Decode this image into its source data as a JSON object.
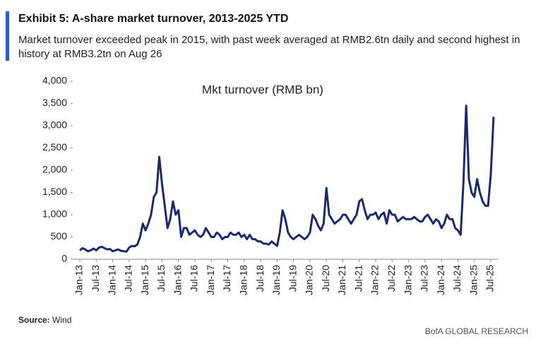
{
  "chart_data": {
    "type": "line",
    "title": "Exhibit 5: A-share market turnover, 2013-2025 YTD",
    "subtitle": "Market turnover exceeded peak in 2015, with past week averaged at RMB2.6tn daily and second highest in history at RMB3.2tn on Aug 26",
    "source_label": "Source:",
    "source": "Wind",
    "brand": "BofA GLOBAL RESEARCH",
    "categories": [
      "Jan-13",
      null,
      null,
      null,
      null,
      null,
      "Jul-13",
      null,
      null,
      null,
      null,
      null,
      "Jan-14",
      null,
      null,
      null,
      null,
      null,
      "Jul-14",
      null,
      null,
      null,
      null,
      null,
      "Jan-15",
      null,
      null,
      null,
      null,
      null,
      "Jul-15",
      null,
      null,
      null,
      null,
      null,
      "Jan-16",
      null,
      null,
      null,
      null,
      null,
      "Jul-16",
      null,
      null,
      null,
      null,
      null,
      "Jan-17",
      null,
      null,
      null,
      null,
      null,
      "Jul-17",
      null,
      null,
      null,
      null,
      null,
      "Jan-18",
      null,
      null,
      null,
      null,
      null,
      "Jul-18",
      null,
      null,
      null,
      null,
      null,
      "Jan-19",
      null,
      null,
      null,
      null,
      null,
      "Jul-19",
      null,
      null,
      null,
      null,
      null,
      "Jan-20",
      null,
      null,
      null,
      null,
      null,
      "Jul-20",
      null,
      null,
      null,
      null,
      null,
      "Jan-21",
      null,
      null,
      null,
      null,
      null,
      "Jul-21",
      null,
      null,
      null,
      null,
      null,
      "Jan-22",
      null,
      null,
      null,
      null,
      null,
      "Jul-22",
      null,
      null,
      null,
      null,
      null,
      "Jan-23",
      null,
      null,
      null,
      null,
      null,
      "Jul-23",
      null,
      null,
      null,
      null,
      null,
      "Jan-24",
      null,
      null,
      null,
      null,
      null,
      "Jul-24",
      null,
      null,
      null,
      null,
      null,
      "Jan-25",
      null,
      null,
      null,
      null,
      null,
      "Jul-25",
      null
    ],
    "series": [
      {
        "name": "Mkt turnover (RMB bn)",
        "color": "#1a2a6e",
        "values": [
          200,
          250,
          220,
          180,
          200,
          240,
          200,
          260,
          280,
          250,
          220,
          230,
          180,
          200,
          220,
          190,
          180,
          170,
          260,
          300,
          290,
          330,
          500,
          800,
          650,
          800,
          1000,
          1400,
          1500,
          2300,
          1700,
          1200,
          700,
          900,
          1300,
          1000,
          1100,
          500,
          700,
          700,
          550,
          600,
          650,
          550,
          500,
          550,
          700,
          600,
          500,
          500,
          600,
          550,
          450,
          500,
          500,
          600,
          550,
          550,
          600,
          500,
          550,
          450,
          550,
          450,
          450,
          400,
          400,
          350,
          350,
          330,
          400,
          350,
          300,
          600,
          1100,
          900,
          600,
          500,
          450,
          500,
          550,
          500,
          450,
          500,
          600,
          1000,
          900,
          750,
          650,
          800,
          1600,
          1000,
          900,
          800,
          850,
          900,
          1000,
          1000,
          900,
          800,
          900,
          1000,
          1300,
          1350,
          1100,
          900,
          1000,
          1000,
          1050,
          900,
          1000,
          1050,
          800,
          1100,
          1000,
          1000,
          850,
          900,
          950,
          900,
          900,
          900,
          950,
          900,
          850,
          850,
          950,
          1000,
          900,
          800,
          900,
          850,
          700,
          800,
          1000,
          900,
          900,
          700,
          650,
          550,
          1700,
          3450,
          1800,
          1500,
          1400,
          1800,
          1500,
          1300,
          1200,
          1200,
          1900,
          3200
        ]
      }
    ],
    "ylim": [
      0,
      4000
    ],
    "yticks": [
      0,
      500,
      {
        "value": 1000,
        "label": "1,000"
      },
      {
        "value": 1500,
        "label": "1,500"
      },
      {
        "value": 2000,
        "label": "2,000"
      },
      {
        "value": 2500,
        "label": "2,500"
      },
      {
        "value": 3000,
        "label": "3,000"
      },
      {
        "value": 3500,
        "label": "3,500"
      },
      {
        "value": 4000,
        "label": "4,000"
      }
    ],
    "grid": false
  }
}
